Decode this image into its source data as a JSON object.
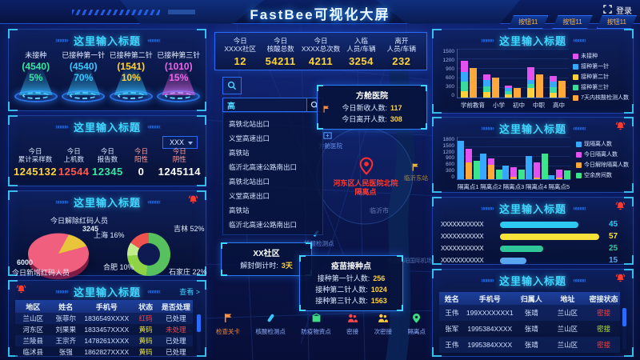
{
  "header": {
    "title": "FastBee可视化大屏",
    "login_label": "登录",
    "nav_buttons": [
      "按钮11",
      "按钮11",
      "按钮11"
    ]
  },
  "decor": {
    "arrows_left": "»»»»»",
    "arrows_right": "«««««"
  },
  "panels": {
    "gauges": {
      "title": "这里输入标题",
      "items": [
        {
          "label": "未接种",
          "value": "(4540)",
          "percent": "5%",
          "color": "#35e8a0",
          "beam": "#35c8ff"
        },
        {
          "label": "已接种第一针",
          "value": "(4540)",
          "percent": "70%",
          "color": "#35c8ff",
          "beam": "#35c8ff"
        },
        {
          "label": "已接种第二针",
          "value": "(1541)",
          "percent": "10%",
          "color": "#ffd23a",
          "beam": "#35c8ff"
        },
        {
          "label": "已接种第三针",
          "value": "(1010)",
          "percent": "15%",
          "color": "#f063e8",
          "beam": "#f063e8"
        }
      ]
    },
    "daily_stats": {
      "title": "这里输入标题",
      "dropdown_value": "XXX",
      "items": [
        {
          "label_line1": "今日",
          "label_line2": "累计采样数",
          "value": "1245132",
          "color": "#ffd23a"
        },
        {
          "label_line1": "今日",
          "label_line2": "上机数",
          "value": "12544",
          "color": "#ff5a4e"
        },
        {
          "label_line1": "今日",
          "label_line2": "报告数",
          "value": "12345",
          "color": "#35e8a0"
        },
        {
          "label_line1": "今日",
          "label_line2": "阳性",
          "value": "0",
          "color": "#ffffff",
          "label_color": "#ff9e9e"
        },
        {
          "label_line1": "今日",
          "label_line2": "阴性",
          "value": "1245114",
          "color": "#ffffff",
          "label_color": "#ff9e9e"
        }
      ]
    },
    "red_code": {
      "title": "这里输入标题",
      "removed_label": "今日解除红码人员",
      "removed_value": "3245",
      "added_value": "6000",
      "added_label": "今日新增红码人员",
      "donut_labels": [
        "上海 16%",
        "吉林 52%",
        "合肥 10%",
        "石家庄 22%"
      ]
    },
    "left_table": {
      "title": "这里输入标题",
      "view_more": "查看 >",
      "headers": [
        "地区",
        "姓名",
        "手机号",
        "状态",
        "是否处理"
      ],
      "rows": [
        [
          {
            "t": "兰山区"
          },
          {
            "t": "张菲尔"
          },
          {
            "t": "1836549XXXX"
          },
          {
            "t": "红码",
            "c": "#ff4242"
          },
          {
            "t": "已处理"
          }
        ],
        [
          {
            "t": "河东区"
          },
          {
            "t": "刘果果"
          },
          {
            "t": "1833457XXXX"
          },
          {
            "t": "黄码",
            "c": "#e8e337"
          },
          {
            "t": "未处理",
            "c": "#ff4242"
          }
        ],
        [
          {
            "t": "兰陵县"
          },
          {
            "t": "王宗齐"
          },
          {
            "t": "1478261XXXX"
          },
          {
            "t": "黄码",
            "c": "#e8e337"
          },
          {
            "t": "已处理"
          }
        ],
        [
          {
            "t": "临沭县"
          },
          {
            "t": "张强"
          },
          {
            "t": "1862827XXXX"
          },
          {
            "t": "黄码",
            "c": "#e8e337"
          },
          {
            "t": "已处理"
          }
        ]
      ]
    },
    "school_chart": {
      "title": "这里输入标题"
    },
    "isolation_chart": {
      "title": "这里输入标题"
    },
    "rank_chart": {
      "title": "这里输入标题"
    },
    "right_table": {
      "title": "这里输入标题",
      "headers": [
        "姓名",
        "手机号",
        "归属人",
        "地址",
        "密接状态"
      ],
      "rows": [
        [
          {
            "t": "王伟"
          },
          {
            "t": "199XXXXXXX1"
          },
          {
            "t": "张靖"
          },
          {
            "t": "兰山区"
          },
          {
            "t": "密接",
            "c": "#ff4242"
          }
        ],
        [
          {
            "t": "张军"
          },
          {
            "t": "1995384XXXX"
          },
          {
            "t": "张靖"
          },
          {
            "t": "兰山区"
          },
          {
            "t": "密接",
            "c": "#b7e83a"
          }
        ],
        [
          {
            "t": "王伟"
          },
          {
            "t": "1995384XXXX"
          },
          {
            "t": "张靖"
          },
          {
            "t": "兰山区"
          },
          {
            "t": "密接",
            "c": "#ff4242"
          }
        ]
      ]
    }
  },
  "center": {
    "stats": [
      {
        "label_line1": "今日",
        "label_line2": "XXXX社区",
        "value": "12"
      },
      {
        "label_line1": "今日",
        "label_line2": "核酸总数",
        "value": "54211"
      },
      {
        "label_line1": "今日",
        "label_line2": "XXXX总次数",
        "value": "4211"
      },
      {
        "label_line1": "入临",
        "label_line2": "人员/车辆",
        "value": "3254"
      },
      {
        "label_line1": "离开",
        "label_line2": "人员/车辆",
        "value": "232"
      }
    ],
    "search": {
      "query": "高",
      "results": [
        "高铁北站出口",
        "义堂高速出口",
        "高铁站",
        "临沂北高速公路南出口",
        "高铁北站出口",
        "义堂高速出口",
        "高铁站",
        "临沂北高速公路南出口"
      ]
    },
    "tooltips": {
      "hospital": {
        "title": "方舱医院",
        "rows": [
          {
            "label": "今日新收人数:",
            "value": "117"
          },
          {
            "label": "今日离开人数:",
            "value": "308"
          }
        ]
      },
      "community": {
        "title": "XX社区",
        "label": "解封倒计时:",
        "value": "3天"
      },
      "vaccine": {
        "title": "疫苗接种点",
        "rows": [
          {
            "label": "接种第一针人数:",
            "value": "256"
          },
          {
            "label": "接种第二针人数:",
            "value": "1024"
          },
          {
            "label": "接种第三针人数:",
            "value": "1563"
          }
        ]
      }
    },
    "map_labels": {
      "red_marker_line1": "河东区人民医院北院",
      "red_marker_line2": "隔离点",
      "hospital_marker": "方舱医院",
      "station": "临沂东站",
      "airport": "临沂启阳国际机场",
      "city": "临沂市",
      "nucleic": "核酸检测点"
    },
    "legend_buttons": [
      {
        "label": "检查关卡",
        "color": "#ff8c3a"
      },
      {
        "label": "核酸检测点",
        "color": "#35c8ff"
      },
      {
        "label": "防疫物资点",
        "color": "#3ddc84"
      },
      {
        "label": "密接",
        "color": "#ff4545"
      },
      {
        "label": "次密接",
        "color": "#ffc93a"
      },
      {
        "label": "隔离点",
        "color": "#3ddc84"
      }
    ]
  },
  "chart_data": [
    {
      "id": "red_code_pie",
      "type": "pie",
      "slices": [
        {
          "label": "今日新增红码人员",
          "value": 6000,
          "color": "#f0607e"
        },
        {
          "label": "今日解除红码人员",
          "value": 3245,
          "color": "#e8c53a"
        }
      ]
    },
    {
      "id": "region_donut",
      "type": "pie",
      "donut": true,
      "slices": [
        {
          "label": "吉林",
          "percent": 52,
          "color": "#57c15e"
        },
        {
          "label": "石家庄",
          "percent": 22,
          "color": "#8fd445"
        },
        {
          "label": "合肥",
          "percent": 10,
          "color": "#c2ec8e"
        },
        {
          "label": "上海",
          "percent": 16,
          "color": "#ef5350"
        }
      ]
    },
    {
      "id": "school_vaccine",
      "type": "bar",
      "categories": [
        "学前教育",
        "小学",
        "初中",
        "中职",
        "高中"
      ],
      "stacked_series": [
        {
          "name": "接种第二针",
          "color": "#ffd23a",
          "values": [
            200,
            160,
            100,
            280,
            150
          ]
        },
        {
          "name": "接种第三针",
          "color": "#39dba0",
          "values": [
            280,
            180,
            90,
            120,
            160
          ]
        },
        {
          "name": "接种第一针",
          "color": "#35a8ff",
          "values": [
            280,
            200,
            100,
            120,
            160
          ]
        },
        {
          "name": "未接种",
          "color": "#e352f0",
          "values": [
            340,
            160,
            80,
            380,
            160
          ]
        }
      ],
      "bar_series": [
        {
          "name": "7天内核酸检测人数",
          "color": "#ffa83a",
          "values": [
            900,
            600,
            300,
            700,
            520
          ]
        }
      ],
      "legend_order": [
        "未接种",
        "接种第一针",
        "接种第二针",
        "接种第三针",
        "7天内核酸检测人数"
      ],
      "ylim": [
        0,
        1500
      ],
      "yticks": [
        0,
        300,
        600,
        900,
        1200,
        1500
      ]
    },
    {
      "id": "isolation",
      "type": "bar",
      "categories": [
        "隔离点1",
        "隔离点2",
        "隔离点3",
        "隔离点4",
        "隔离点5"
      ],
      "series": [
        {
          "name": "现隔离人数",
          "color": "#35a8ff",
          "role": "bar",
          "values": [
            1600,
            1050,
            550,
            950,
            150
          ]
        },
        {
          "name": "今日隔离人数",
          "color": "#e352f0",
          "role": "stack-top",
          "values": [
            550,
            250,
            400,
            620,
            340
          ]
        },
        {
          "name": "今日解除隔离人数",
          "color": "#ffa83a",
          "role": "stack-bottom",
          "values": [
            700,
            600,
            100,
            80,
            60
          ]
        },
        {
          "name": "空余房间数",
          "color": "#39e68c",
          "role": "bar",
          "values": [
            750,
            400,
            400,
            1050,
            350
          ]
        }
      ],
      "ylim": [
        0,
        1800
      ],
      "yticks": [
        0,
        300,
        600,
        900,
        1200,
        1500,
        1800
      ]
    },
    {
      "id": "rank",
      "type": "bar",
      "horizontal": true,
      "categories": [
        "XXXXXXXXXXX",
        "XXXXXXXXXXX",
        "XXXXXXXXXXX",
        "XXXXXXXXXXX"
      ],
      "values": [
        45,
        57,
        25,
        15
      ],
      "xmax": 60,
      "colors": [
        "#2ec9f0",
        "#f7e23b",
        "#2fc79a",
        "#5aa8f0"
      ]
    }
  ]
}
